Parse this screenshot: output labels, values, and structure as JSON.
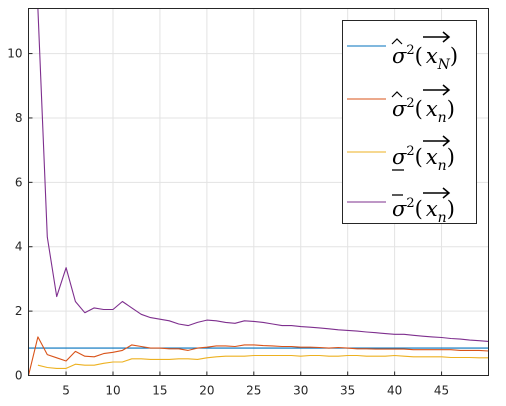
{
  "chart_data": {
    "type": "line",
    "title": "",
    "xlabel": "",
    "ylabel": "",
    "xlim": [
      1,
      50
    ],
    "ylim": [
      0,
      11.4
    ],
    "xticks": [
      5,
      10,
      15,
      20,
      25,
      30,
      35,
      40,
      45
    ],
    "yticks": [
      0,
      2,
      4,
      6,
      8,
      10
    ],
    "grid": true,
    "box": true,
    "legend_position": "top-right",
    "series": [
      {
        "name": "σ̂²(x⃗ N)",
        "color": "#0072bd",
        "x": [
          1,
          50
        ],
        "y": [
          0.85,
          0.85
        ]
      },
      {
        "name": "σ̂²(x⃗ n)",
        "color": "#d95319",
        "x": [
          1,
          2,
          3,
          4,
          5,
          6,
          7,
          8,
          9,
          10,
          11,
          12,
          13,
          14,
          15,
          16,
          17,
          18,
          19,
          20,
          21,
          22,
          23,
          24,
          25,
          26,
          27,
          28,
          29,
          30,
          31,
          32,
          33,
          34,
          35,
          36,
          37,
          38,
          39,
          40,
          41,
          42,
          43,
          44,
          45,
          46,
          47,
          48,
          49,
          50
        ],
        "y": [
          0.0,
          1.2,
          0.65,
          0.55,
          0.45,
          0.75,
          0.6,
          0.58,
          0.68,
          0.72,
          0.78,
          0.95,
          0.9,
          0.85,
          0.85,
          0.83,
          0.83,
          0.78,
          0.85,
          0.88,
          0.92,
          0.92,
          0.9,
          0.95,
          0.95,
          0.93,
          0.92,
          0.9,
          0.9,
          0.88,
          0.88,
          0.87,
          0.85,
          0.87,
          0.85,
          0.83,
          0.83,
          0.82,
          0.82,
          0.82,
          0.82,
          0.8,
          0.8,
          0.8,
          0.8,
          0.8,
          0.78,
          0.78,
          0.78,
          0.76
        ]
      },
      {
        "name": "σ²(x⃗ n) (underlined σ)",
        "color": "#edb120",
        "x": [
          2,
          3,
          4,
          5,
          6,
          7,
          8,
          9,
          10,
          11,
          12,
          13,
          14,
          15,
          16,
          17,
          18,
          19,
          20,
          21,
          22,
          23,
          24,
          25,
          26,
          27,
          28,
          29,
          30,
          31,
          32,
          33,
          34,
          35,
          36,
          37,
          38,
          39,
          40,
          41,
          42,
          43,
          44,
          45,
          46,
          47,
          48,
          49,
          50
        ],
        "y": [
          0.32,
          0.25,
          0.22,
          0.22,
          0.35,
          0.32,
          0.32,
          0.38,
          0.42,
          0.42,
          0.52,
          0.52,
          0.5,
          0.5,
          0.5,
          0.52,
          0.52,
          0.5,
          0.55,
          0.58,
          0.6,
          0.6,
          0.6,
          0.62,
          0.62,
          0.62,
          0.62,
          0.62,
          0.6,
          0.62,
          0.62,
          0.6,
          0.6,
          0.62,
          0.62,
          0.6,
          0.6,
          0.6,
          0.62,
          0.6,
          0.58,
          0.58,
          0.58,
          0.58,
          0.56,
          0.56,
          0.56,
          0.55,
          0.55
        ]
      },
      {
        "name": "σ̄²(x⃗ n)",
        "color": "#7e2f8e",
        "x": [
          2,
          3,
          4,
          5,
          6,
          7,
          8,
          9,
          10,
          11,
          12,
          13,
          14,
          15,
          16,
          17,
          18,
          19,
          20,
          21,
          22,
          23,
          24,
          25,
          26,
          27,
          28,
          29,
          30,
          31,
          32,
          33,
          34,
          35,
          36,
          37,
          38,
          39,
          40,
          41,
          42,
          43,
          44,
          45,
          46,
          47,
          48,
          49,
          50
        ],
        "y": [
          11.4,
          4.3,
          2.45,
          3.35,
          2.3,
          1.95,
          2.1,
          2.05,
          2.05,
          2.3,
          2.1,
          1.9,
          1.8,
          1.75,
          1.7,
          1.6,
          1.55,
          1.65,
          1.72,
          1.7,
          1.65,
          1.62,
          1.7,
          1.68,
          1.65,
          1.6,
          1.55,
          1.55,
          1.52,
          1.5,
          1.48,
          1.45,
          1.42,
          1.4,
          1.38,
          1.35,
          1.33,
          1.3,
          1.28,
          1.28,
          1.25,
          1.22,
          1.2,
          1.18,
          1.15,
          1.13,
          1.1,
          1.08,
          1.06
        ]
      }
    ]
  }
}
